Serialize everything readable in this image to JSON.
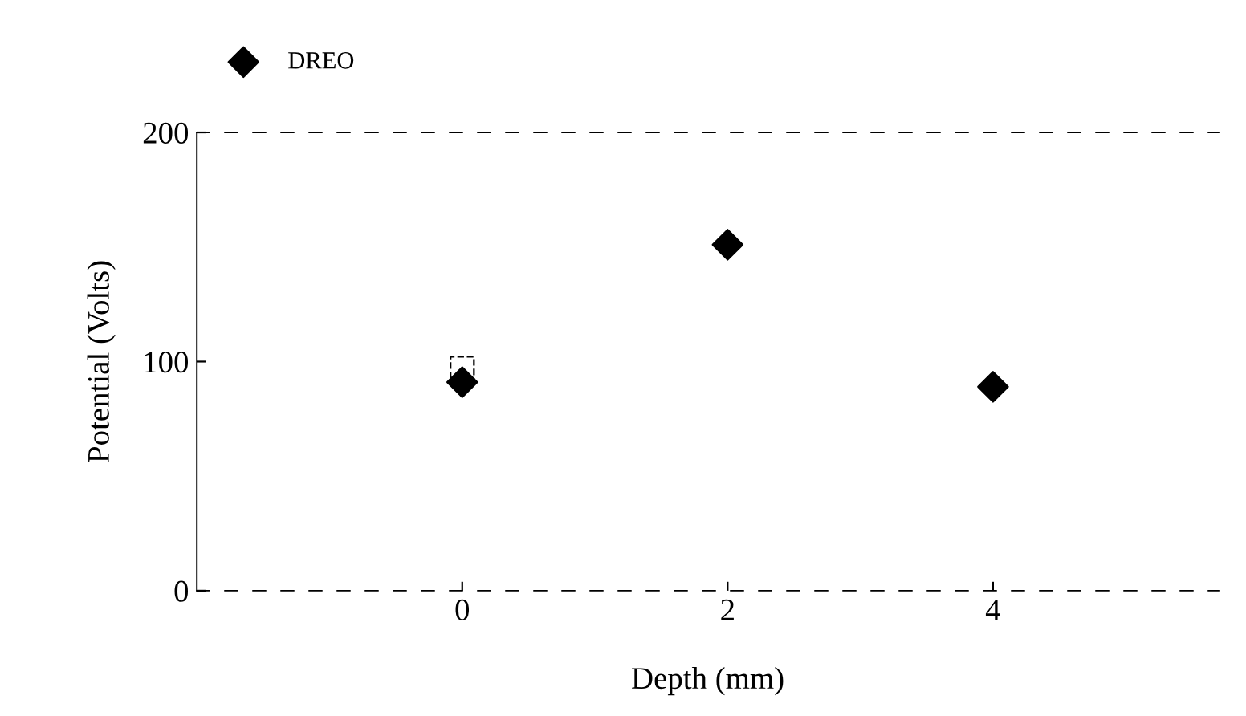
{
  "chart_data": {
    "type": "scatter",
    "xlabel": "Depth (mm)",
    "ylabel": "Potential (Volts)",
    "xlim": [
      -2,
      5.7
    ],
    "xticks": [
      0,
      2,
      4
    ],
    "ylim": [
      0,
      200
    ],
    "yticks": [
      0,
      100,
      200
    ],
    "legend": "top",
    "series": [
      {
        "name": "DREO",
        "color": "#000000",
        "marker": "diamond",
        "x": [
          0,
          2,
          4
        ],
        "values": [
          91,
          151,
          89
        ]
      },
      {
        "color": "#000000",
        "marker": "square",
        "x": [
          0
        ],
        "values": [
          97
        ]
      }
    ]
  }
}
